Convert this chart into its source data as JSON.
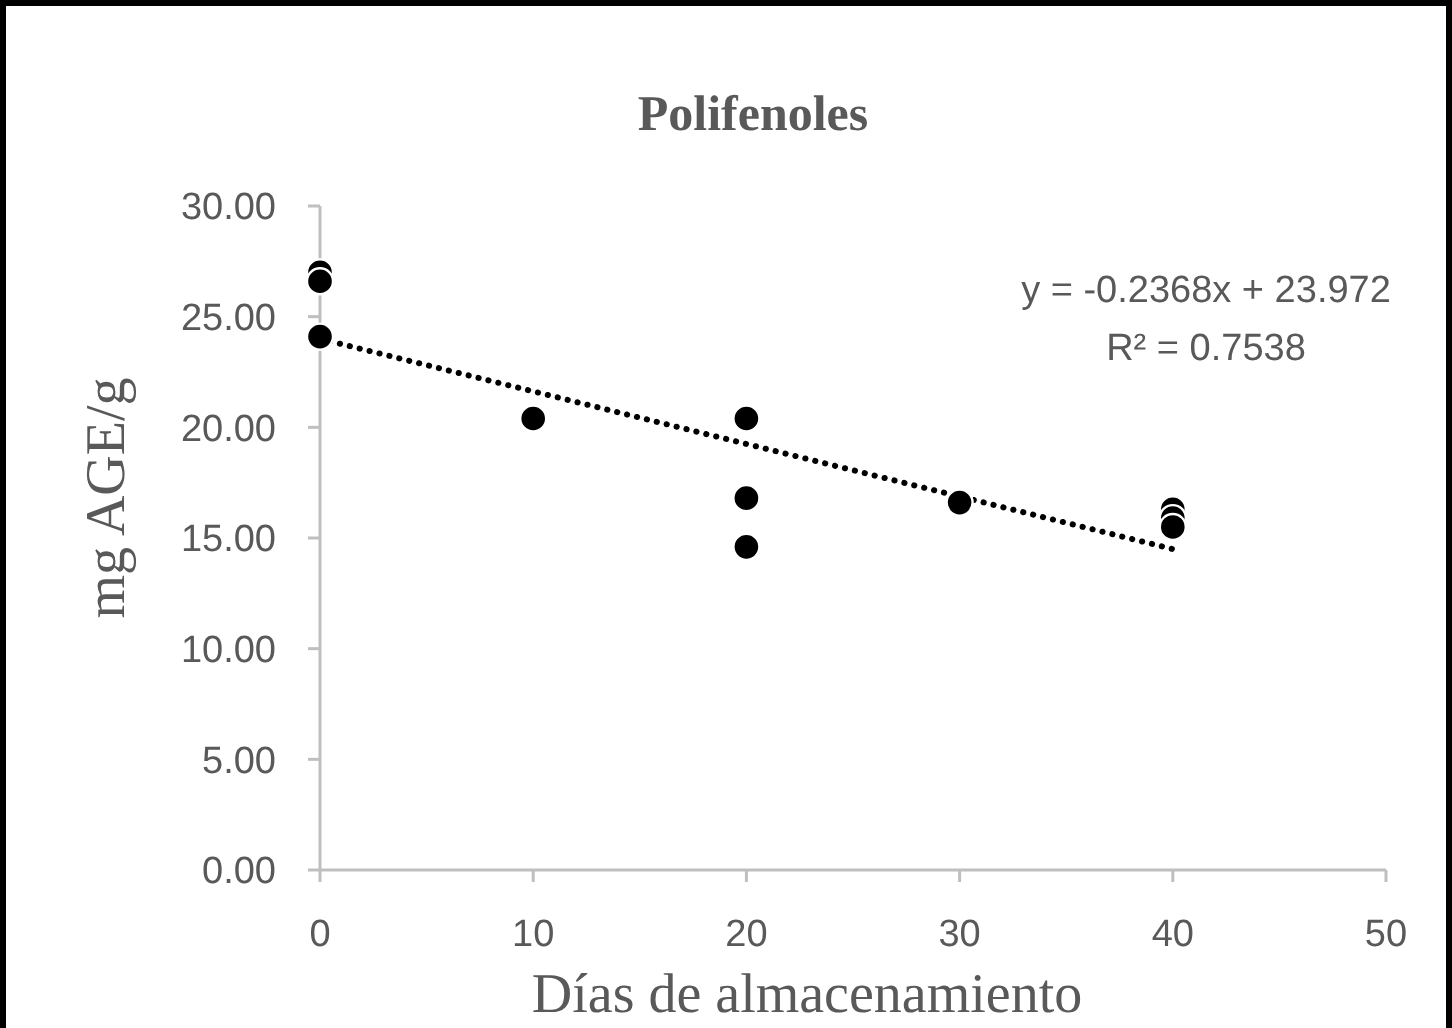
{
  "chart_data": {
    "type": "scatter",
    "title": "Polifenoles",
    "xlabel": "Días de almacenamiento",
    "ylabel": "mg AGE/g",
    "xlim": [
      0,
      50
    ],
    "xticks": [
      0,
      10,
      20,
      30,
      40,
      50
    ],
    "ylim": [
      0,
      30
    ],
    "yticks": [
      {
        "value": 0,
        "label": "0.00"
      },
      {
        "value": 5,
        "label": "5.00"
      },
      {
        "value": 10,
        "label": "10.00"
      },
      {
        "value": 15,
        "label": "15.00"
      },
      {
        "value": 20,
        "label": "20.00"
      },
      {
        "value": 25,
        "label": "25.00"
      },
      {
        "value": 30,
        "label": "30.00"
      }
    ],
    "grid": false,
    "legend": false,
    "marker": "circle",
    "series": [
      {
        "color": "#000000",
        "x": [
          0,
          0,
          0,
          10,
          20,
          20,
          20,
          30,
          40,
          40,
          40
        ],
        "values": [
          27,
          26.6,
          24.1,
          20.4,
          20.4,
          16.8,
          14.6,
          16.6,
          16.3,
          15.9,
          15.5
        ]
      },
      {
        "type": "line",
        "color": "#000000",
        "line_style": "dotted",
        "marker": "none",
        "x": [
          0,
          40
        ],
        "values": [
          24.0,
          14.5
        ]
      }
    ],
    "annotations": [
      "y = -0.2368x + 23.972",
      "R² = 0.7538"
    ]
  }
}
